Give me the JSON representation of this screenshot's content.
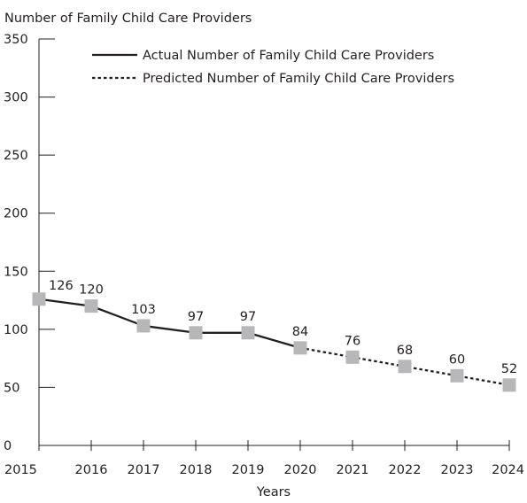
{
  "chart_data": {
    "type": "line",
    "ylabel": "Number of Family Child Care Providers",
    "xlabel": "Years",
    "x": [
      "2015",
      "2016",
      "2017",
      "2018",
      "2019",
      "2020",
      "2021",
      "2022",
      "2023",
      "2024"
    ],
    "ylim": [
      0,
      350
    ],
    "yticks": [
      0,
      50,
      100,
      150,
      200,
      250,
      300,
      350
    ],
    "grid": false,
    "legend_position": "top-right",
    "series": [
      {
        "name": "Actual Number of Family Child Care Providers",
        "line_style": "solid",
        "x": [
          "2015",
          "2016",
          "2017",
          "2018",
          "2019",
          "2020"
        ],
        "values": [
          126,
          120,
          103,
          97,
          97,
          84
        ]
      },
      {
        "name": "Predicted Number of Family Child Care Providers",
        "line_style": "dotted",
        "x": [
          "2020",
          "2021",
          "2022",
          "2023",
          "2024"
        ],
        "values": [
          84,
          76,
          68,
          60,
          52
        ]
      }
    ],
    "data_labels": [
      "126",
      "120",
      "103",
      "97",
      "97",
      "84",
      "76",
      "68",
      "60",
      "52"
    ],
    "colors": {
      "line": "#231f20",
      "marker": "#b7b7b9",
      "text": "#231f20"
    }
  }
}
